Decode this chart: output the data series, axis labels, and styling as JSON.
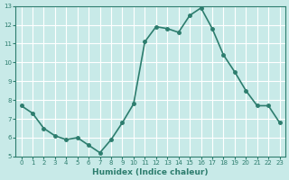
{
  "x": [
    0,
    1,
    2,
    3,
    4,
    5,
    6,
    7,
    8,
    9,
    10,
    11,
    12,
    13,
    14,
    15,
    16,
    17,
    18,
    19,
    20,
    21,
    22,
    23
  ],
  "y": [
    7.7,
    7.3,
    6.5,
    6.1,
    5.9,
    6.0,
    5.6,
    5.2,
    5.9,
    6.8,
    7.8,
    11.1,
    11.9,
    11.8,
    11.6,
    12.5,
    12.9,
    11.8,
    10.4,
    9.5,
    8.5,
    7.7,
    7.7,
    6.8
  ],
  "line_color": "#2d7d6e",
  "marker": "o",
  "marker_size": 2.5,
  "bg_color": "#c8eae8",
  "grid_color": "#ffffff",
  "xlabel": "Humidex (Indice chaleur)",
  "ylabel": "",
  "ylim": [
    5,
    13
  ],
  "xlim": [
    -0.5,
    23.5
  ],
  "yticks": [
    5,
    6,
    7,
    8,
    9,
    10,
    11,
    12,
    13
  ],
  "xticks": [
    0,
    1,
    2,
    3,
    4,
    5,
    6,
    7,
    8,
    9,
    10,
    11,
    12,
    13,
    14,
    15,
    16,
    17,
    18,
    19,
    20,
    21,
    22,
    23
  ],
  "font_color": "#2d7d6e",
  "axis_color": "#2d7d6e",
  "linewidth": 1.2
}
